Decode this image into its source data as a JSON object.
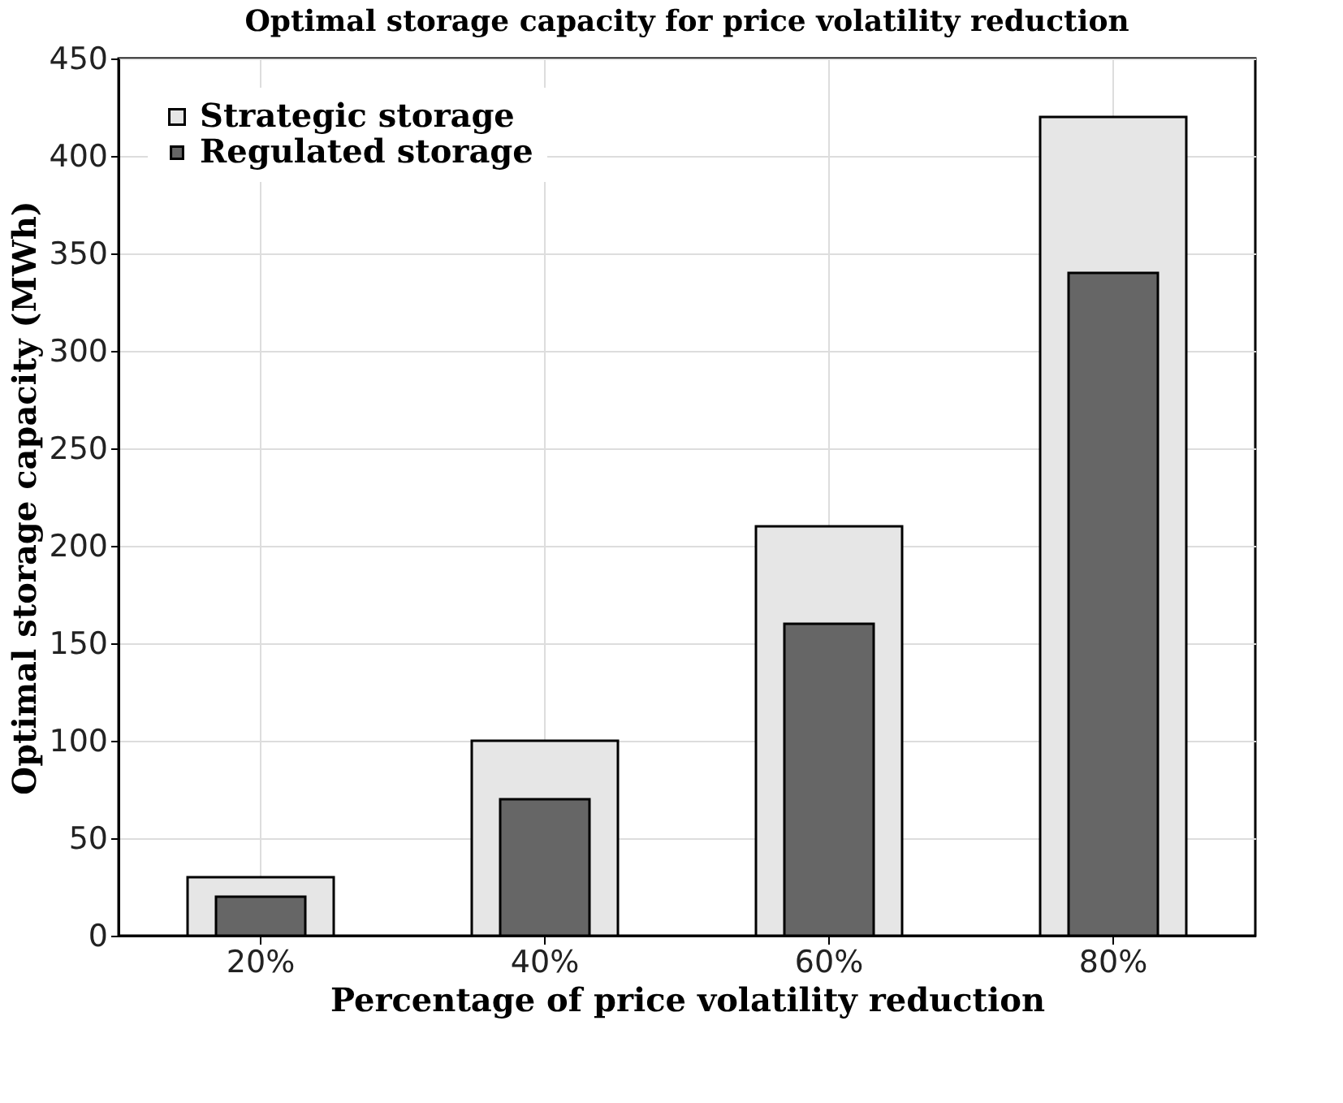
{
  "chart_data": {
    "type": "bar",
    "title": "Optimal storage capacity for price volatility reduction",
    "xlabel": "Percentage of price volatility reduction",
    "ylabel": "Optimal storage capacity (MWh)",
    "categories": [
      "20%",
      "40%",
      "60%",
      "80%"
    ],
    "series": [
      {
        "name": "Strategic storage",
        "color": "#e6e6e6",
        "values": [
          30,
          100,
          210,
          420
        ]
      },
      {
        "name": "Regulated storage",
        "color": "#666666",
        "values": [
          20,
          70,
          160,
          340
        ]
      }
    ],
    "ylim": [
      0,
      450
    ],
    "yticks": [
      0,
      50,
      100,
      150,
      200,
      250,
      300,
      350,
      400,
      450
    ],
    "grid": true,
    "legend": "top left"
  }
}
